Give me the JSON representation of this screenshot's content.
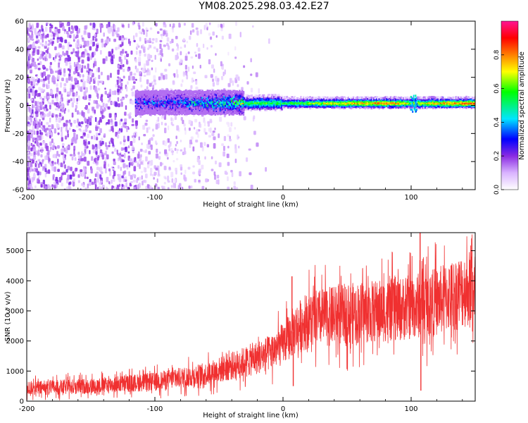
{
  "title": "YM08.2025.298.03.42.E27",
  "chart_data": [
    {
      "type": "heatmap",
      "name": "spectrogram",
      "xlabel": "Height of straight line (km)",
      "ylabel": "Frequency (Hz)",
      "xlim": [
        -200,
        150
      ],
      "ylim": [
        -60,
        60
      ],
      "xticks": [
        -200,
        -100,
        0,
        100
      ],
      "yticks": [
        -60,
        -40,
        -20,
        0,
        20,
        40,
        60
      ],
      "x_tick_labels": [
        "-200",
        "-100",
        "0",
        "100"
      ],
      "y_tick_labels": [
        "-60",
        "-40",
        "-20",
        "0",
        "20",
        "40",
        "60"
      ],
      "signal_band": {
        "description_free_values": true,
        "x_start": -115,
        "x_end": 150,
        "center_hz": 2,
        "amplitude_profile": [
          {
            "x": -115,
            "amp": 0.25
          },
          {
            "x": -80,
            "amp": 0.3
          },
          {
            "x": -40,
            "amp": 0.45
          },
          {
            "x": -20,
            "amp": 0.6
          },
          {
            "x": 0,
            "amp": 0.55
          },
          {
            "x": 40,
            "amp": 0.75
          },
          {
            "x": 80,
            "amp": 0.85
          },
          {
            "x": 100,
            "amp": 0.7
          },
          {
            "x": 150,
            "amp": 0.9
          }
        ]
      },
      "noise_region": {
        "x_start": -200,
        "x_end": -30,
        "amp_max": 0.2
      },
      "colorbar": {
        "label": "Normalized spectral amplitude",
        "range": [
          0.0,
          1.0
        ],
        "ticks": [
          0.0,
          0.2,
          0.4,
          0.6,
          0.8
        ],
        "tick_labels": [
          "0.0",
          "0.2",
          "0.4",
          "0.6",
          "0.8"
        ],
        "colors": [
          "#ffffff",
          "#d9b3ff",
          "#8a2be2",
          "#0000ff",
          "#00e5ff",
          "#00ff00",
          "#ffff00",
          "#ff8000",
          "#ff0000",
          "#ff1493"
        ]
      }
    },
    {
      "type": "line",
      "name": "snr",
      "xlabel": "Height of straight line (km)",
      "ylabel": "SNR (10 * v/v)",
      "xlim": [
        -200,
        150
      ],
      "ylim": [
        0,
        5600
      ],
      "xticks": [
        -200,
        -100,
        0,
        100
      ],
      "yticks": [
        0,
        1000,
        2000,
        3000,
        4000,
        5000
      ],
      "x_tick_labels": [
        "-200",
        "-100",
        "0",
        "100"
      ],
      "y_tick_labels": [
        "0",
        "1000",
        "2000",
        "3000",
        "4000",
        "5000"
      ],
      "color": "#f03030",
      "trend": [
        {
          "x": -200,
          "y": 420
        },
        {
          "x": -150,
          "y": 500
        },
        {
          "x": -100,
          "y": 650
        },
        {
          "x": -60,
          "y": 900
        },
        {
          "x": -30,
          "y": 1300
        },
        {
          "x": -10,
          "y": 1600
        },
        {
          "x": 0,
          "y": 1900
        },
        {
          "x": 10,
          "y": 2400
        },
        {
          "x": 20,
          "y": 2700
        },
        {
          "x": 50,
          "y": 2900
        },
        {
          "x": 90,
          "y": 3050
        },
        {
          "x": 120,
          "y": 3300
        },
        {
          "x": 150,
          "y": 3850
        }
      ],
      "spikes": [
        {
          "x": 7,
          "y": 4150
        },
        {
          "x": 8,
          "y": 500
        },
        {
          "x": 107,
          "y": 5600
        },
        {
          "x": 107.6,
          "y": 350
        }
      ]
    }
  ]
}
